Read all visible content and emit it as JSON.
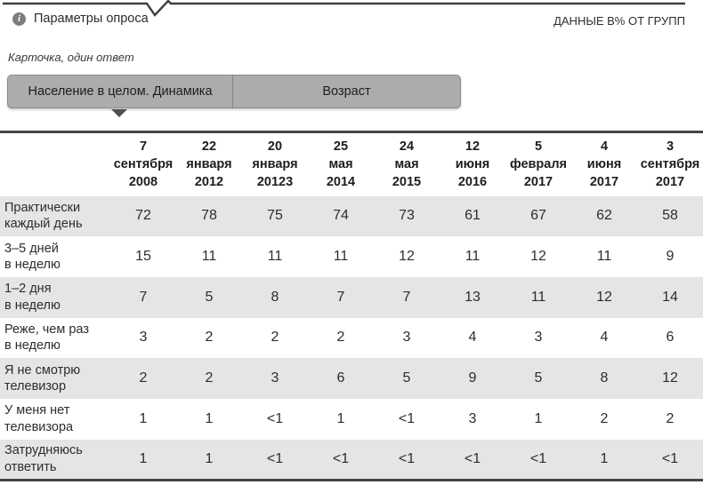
{
  "header": {
    "params_label": "Параметры опроса",
    "info_icon": "i",
    "data_note": "ДАННЫЕ В% ОТ ГРУПП"
  },
  "caption": "Карточка, один ответ",
  "tabs": [
    {
      "label": "Население в целом. Динамика",
      "active": true
    },
    {
      "label": "Возраст",
      "active": false
    }
  ],
  "colors": {
    "rule": "#454545",
    "row_shade": "#e5e5e5",
    "tab_fill": "#acacac",
    "tab_border": "#8b8b8b",
    "pointer": "#4f4f4f",
    "info_circle": "#7d7d7d",
    "text": "#2d2d2d"
  },
  "chart_data": {
    "type": "table",
    "columns": [
      [
        "7",
        "сентября",
        "2008"
      ],
      [
        "22",
        "января",
        "2012"
      ],
      [
        "20",
        "января",
        "20123"
      ],
      [
        "25",
        "мая",
        "2014"
      ],
      [
        "24",
        "мая",
        "2015"
      ],
      [
        "12",
        "июня",
        "2016"
      ],
      [
        "5",
        "февраля",
        "2017"
      ],
      [
        "4",
        "июня",
        "2017"
      ],
      [
        "3",
        "сентября",
        "2017"
      ]
    ],
    "rows": [
      {
        "label": [
          "Практически",
          "каждый день"
        ],
        "values": [
          "72",
          "78",
          "75",
          "74",
          "73",
          "61",
          "67",
          "62",
          "58"
        ]
      },
      {
        "label": [
          "3–5 дней",
          "в неделю"
        ],
        "values": [
          "15",
          "11",
          "11",
          "11",
          "12",
          "11",
          "12",
          "11",
          "9"
        ]
      },
      {
        "label": [
          "1–2 дня",
          "в неделю"
        ],
        "values": [
          "7",
          "5",
          "8",
          "7",
          "7",
          "13",
          "11",
          "12",
          "14"
        ]
      },
      {
        "label": [
          "Реже, чем раз",
          "в неделю"
        ],
        "values": [
          "3",
          "2",
          "2",
          "2",
          "3",
          "4",
          "3",
          "4",
          "6"
        ]
      },
      {
        "label": [
          "Я не смотрю",
          "телевизор"
        ],
        "values": [
          "2",
          "2",
          "3",
          "6",
          "5",
          "9",
          "5",
          "8",
          "12"
        ]
      },
      {
        "label": [
          "У меня нет",
          "телевизора"
        ],
        "values": [
          "1",
          "1",
          "<1",
          "1",
          "<1",
          "3",
          "1",
          "2",
          "2"
        ]
      },
      {
        "label": [
          "Затрудняюсь",
          "ответить"
        ],
        "values": [
          "1",
          "1",
          "<1",
          "<1",
          "<1",
          "<1",
          "<1",
          "1",
          "<1"
        ]
      }
    ]
  }
}
